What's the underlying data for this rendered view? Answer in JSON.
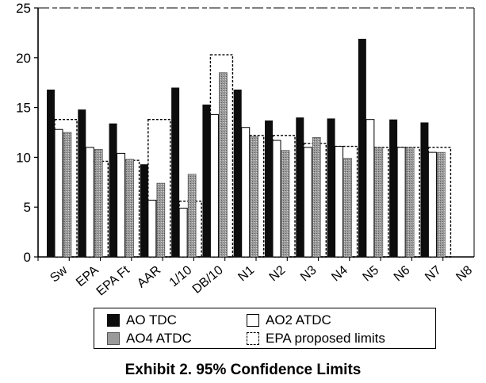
{
  "caption": "Exhibit 2. 95% Confidence Limits",
  "chart_data": {
    "type": "bar",
    "title": "",
    "xlabel": "",
    "ylabel": "",
    "ylim": [
      0,
      25
    ],
    "y_ticks": [
      0,
      5,
      10,
      15,
      20,
      25
    ],
    "grid": false,
    "legend_position": "bottom",
    "categories": [
      "Sw",
      "EPA",
      "EPA Ft",
      "AAR",
      "1/10",
      "DB/10",
      "N1",
      "N2",
      "N3",
      "N4",
      "N5",
      "N6",
      "N7",
      "N8"
    ],
    "series": [
      {
        "name": "AO TDC",
        "style": "solid-black",
        "values": [
          16.8,
          14.8,
          13.4,
          9.3,
          17.0,
          15.3,
          16.8,
          13.7,
          14.0,
          13.9,
          21.9,
          13.8,
          13.5,
          null
        ]
      },
      {
        "name": "AO2 ATDC",
        "style": "white-outline",
        "values": [
          12.8,
          11.0,
          10.4,
          5.7,
          4.9,
          14.3,
          13.0,
          11.7,
          11.0,
          11.1,
          13.8,
          11.0,
          10.5,
          null
        ]
      },
      {
        "name": "AO4 ATDC",
        "style": "gray-stipple",
        "values": [
          12.5,
          10.8,
          9.8,
          7.4,
          8.3,
          18.5,
          12.1,
          10.7,
          12.0,
          9.9,
          11.0,
          11.0,
          10.5,
          null
        ]
      },
      {
        "name": "EPA proposed limits",
        "style": "dashed-outline",
        "values": [
          13.8,
          9.6,
          9.7,
          13.8,
          5.6,
          20.3,
          12.2,
          12.2,
          11.4,
          11.1,
          11.0,
          11.0,
          11.0,
          null
        ]
      }
    ]
  },
  "colors": {
    "solid": "#0d0d0d",
    "stipple": "#9a9a9a",
    "outline": "#000000",
    "background": "#ffffff"
  }
}
